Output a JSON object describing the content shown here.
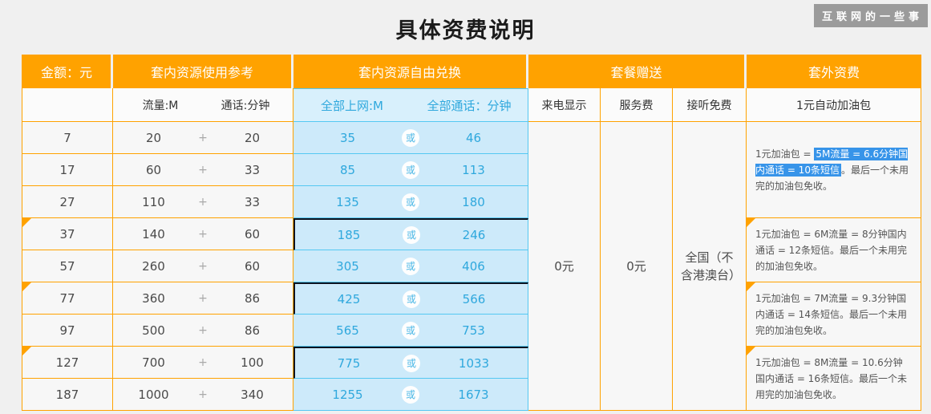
{
  "page": {
    "title": "具体资费说明",
    "badge": "互联网的一些事"
  },
  "header": {
    "amount": "金额：元",
    "in_plan_usage": "套内资源使用参考",
    "in_plan_exchange": "套内资源自由兑换",
    "plan_gift": "套餐赠送",
    "out_plan_fee": "套外资费"
  },
  "subheader": {
    "data_label": "流量:M",
    "voice_label": "通话:分钟",
    "net_label": "全部上网:M",
    "call_label": "全部通话：分钟",
    "caller_id": "来电显示",
    "service_fee": "服务费",
    "free_answer": "接听免费",
    "refuel": "1元自动加油包"
  },
  "table": {
    "plus": "+",
    "or": "或",
    "rows": [
      {
        "amount": "7",
        "data": "20",
        "voice": "20",
        "net": "35",
        "call": "46"
      },
      {
        "amount": "17",
        "data": "60",
        "voice": "33",
        "net": "85",
        "call": "113"
      },
      {
        "amount": "27",
        "data": "110",
        "voice": "33",
        "net": "135",
        "call": "180"
      },
      {
        "amount": "37",
        "data": "140",
        "voice": "60",
        "net": "185",
        "call": "246"
      },
      {
        "amount": "57",
        "data": "260",
        "voice": "60",
        "net": "305",
        "call": "406"
      },
      {
        "amount": "77",
        "data": "360",
        "voice": "86",
        "net": "425",
        "call": "566"
      },
      {
        "amount": "97",
        "data": "500",
        "voice": "86",
        "net": "565",
        "call": "753"
      },
      {
        "amount": "127",
        "data": "700",
        "voice": "100",
        "net": "775",
        "call": "1033"
      },
      {
        "amount": "187",
        "data": "1000",
        "voice": "340",
        "net": "1255",
        "call": "1673"
      }
    ]
  },
  "gift": {
    "caller_id_value": "0元",
    "service_fee_value": "0元",
    "free_answer_value": "全国（不含港澳台）"
  },
  "out_plan": {
    "block1_prefix": "1元加油包 = ",
    "block1_highlight": "5M流量 = 6.6分钟国内通话 = 10条短信",
    "block1_suffix": "。最后一个未用完的加油包免收。",
    "block2": "1元加油包 = 6M流量 = 8分钟国内通话 = 12条短信。最后一个未用完的加油包免收。",
    "block3": "1元加油包 = 7M流量 = 9.3分钟国内通话 = 14条短信。最后一个未用完的加油包免收。",
    "block4": "1元加油包 = 8M流量 = 10.6分钟国内通话 = 16条短信。最后一个未用完的加油包免收。"
  },
  "colors": {
    "accent_orange": "#ffa200",
    "light_blue_bg": "#cdeafa",
    "blue_text": "#2fa8dd",
    "highlight_blue": "#3794e9",
    "group_border_dark": "#0c1420",
    "badge_gray": "#9b9b9b"
  }
}
